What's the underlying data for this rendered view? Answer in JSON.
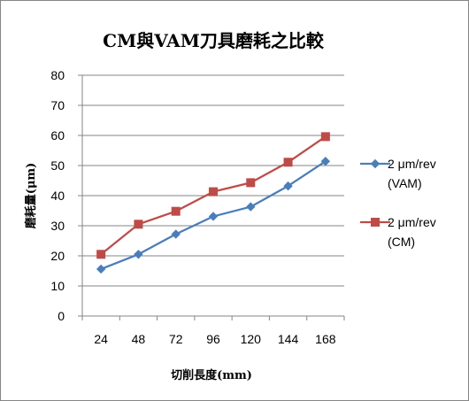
{
  "chart_data": {
    "type": "line",
    "title": "CM與VAM刀具磨耗之比較",
    "xlabel": "切削長度(mm)",
    "ylabel": "磨耗量(μm)",
    "categories": [
      "24",
      "48",
      "72",
      "96",
      "120",
      "144",
      "168"
    ],
    "ylim": [
      0,
      80
    ],
    "yticks": [
      "0",
      "10",
      "20",
      "30",
      "40",
      "50",
      "60",
      "70",
      "80"
    ],
    "gridlines": "horizontal",
    "legend_position": "right",
    "series": [
      {
        "name_line1": "2 μm/rev",
        "name_line2": "(VAM)",
        "color": "#4a7ebb",
        "marker": "diamond",
        "values": [
          15.6,
          20.5,
          27.2,
          33.1,
          36.3,
          43.2,
          51.4
        ]
      },
      {
        "name_line1": "2 μm/rev",
        "name_line2": "(CM)",
        "color": "#be4b48",
        "marker": "square",
        "values": [
          20.5,
          30.5,
          34.8,
          41.3,
          44.3,
          51.1,
          59.6
        ]
      }
    ]
  }
}
